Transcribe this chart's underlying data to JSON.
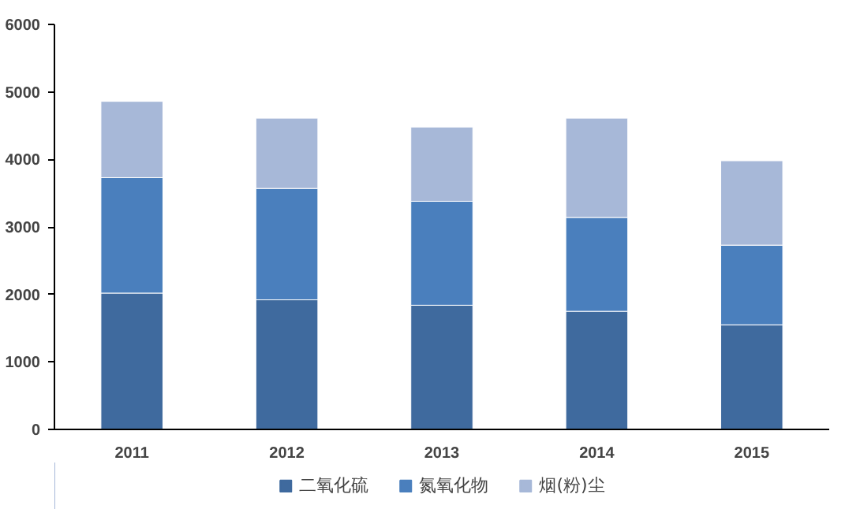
{
  "chart_data": {
    "type": "bar",
    "stacked": true,
    "categories": [
      "2011",
      "2012",
      "2013",
      "2014",
      "2015"
    ],
    "series": [
      {
        "name": "二氧化硫",
        "color": "#3f6a9e",
        "values": [
          2020,
          1920,
          1840,
          1750,
          1550
        ]
      },
      {
        "name": "氮氧化物",
        "color": "#4a7fbd",
        "values": [
          1710,
          1650,
          1540,
          1390,
          1180
        ]
      },
      {
        "name": "烟(粉)尘",
        "color": "#a7b8d8",
        "values": [
          1130,
          1040,
          1100,
          1470,
          1250
        ]
      }
    ],
    "ylim": [
      0,
      6000
    ],
    "yticks": [
      0,
      1000,
      2000,
      3000,
      4000,
      5000,
      6000
    ],
    "grid": false,
    "legend": "bottom"
  }
}
